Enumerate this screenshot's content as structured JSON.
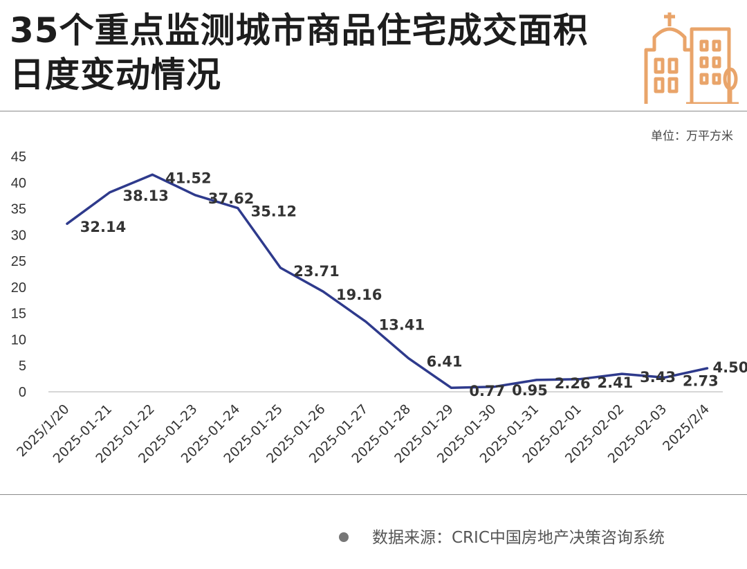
{
  "header": {
    "title": "35个重点监测城市商品住宅成交面积日度变动情况"
  },
  "icons": {
    "logo": "city-buildings-icon",
    "source_bullet": "bullet-dot-icon"
  },
  "colors": {
    "line": "#2e3a8c",
    "axis_text": "#333333",
    "label_text": "#333333",
    "logo": "#e9a46a",
    "divider": "#8a8a8a"
  },
  "unit_label": "单位：万平方米",
  "footer": {
    "source": "数据来源：CRIC中国房地产决策咨询系统"
  },
  "chart_data": {
    "type": "line",
    "title": "35个重点监测城市商品住宅成交面积日度变动情况",
    "xlabel": "",
    "ylabel": "",
    "unit": "单位：万平方米",
    "categories": [
      "2025/1/20",
      "2025-01-21",
      "2025-01-22",
      "2025-01-23",
      "2025-01-24",
      "2025-01-25",
      "2025-01-26",
      "2025-01-27",
      "2025-01-28",
      "2025-01-29",
      "2025-01-30",
      "2025-01-31",
      "2025-02-01",
      "2025-02-02",
      "2025-02-03",
      "2025/2/4"
    ],
    "series": [
      {
        "values": [
          32.14,
          38.13,
          41.52,
          37.62,
          35.12,
          23.71,
          19.16,
          13.41,
          6.41,
          0.77,
          0.95,
          2.26,
          2.41,
          3.43,
          2.73,
          4.5
        ]
      }
    ],
    "data_labels": [
      "32.14",
      "38.13",
      "41.52",
      "37.62",
      "35.12",
      "23.71",
      "19.16",
      "13.41",
      "6.41",
      "0.77",
      "0.95",
      "2.26",
      "2.41",
      "3.43",
      "2.73",
      "4.50"
    ],
    "ylim": [
      0,
      45
    ],
    "yticks": [
      0,
      5,
      10,
      15,
      20,
      25,
      30,
      35,
      40,
      45
    ],
    "grid": false,
    "legend": "none"
  }
}
